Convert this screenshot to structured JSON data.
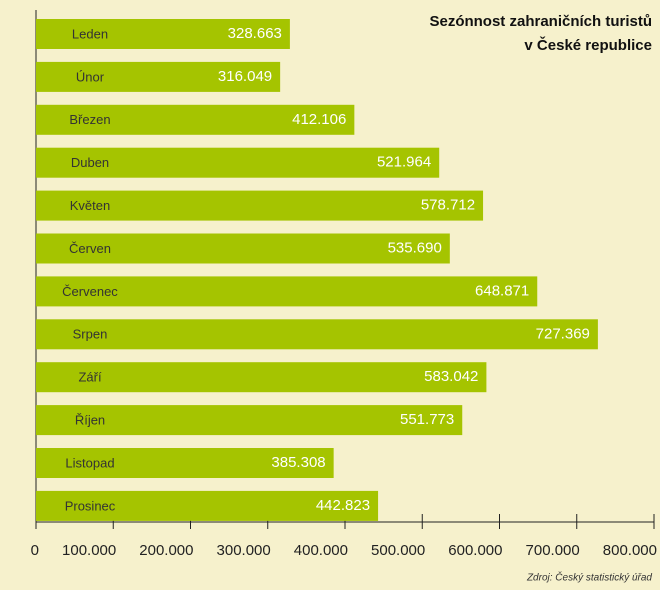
{
  "chart_data": {
    "type": "barh",
    "title_lines": [
      "Sezónnost zahraničních turistů",
      "v České republice"
    ],
    "source": "Zdroj: Český statistický úřad",
    "categories": [
      "Leden",
      "Únor",
      "Březen",
      "Duben",
      "Květen",
      "Červen",
      "Červenec",
      "Srpen",
      "Září",
      "Říjen",
      "Listopad",
      "Prosinec"
    ],
    "values": [
      328663,
      316049,
      412106,
      521964,
      578712,
      535690,
      648871,
      727369,
      583042,
      551773,
      385308,
      442823
    ],
    "value_labels": [
      "328.663",
      "316.049",
      "412.106",
      "521.964",
      "578.712",
      "535.690",
      "648.871",
      "727.369",
      "583.042",
      "551.773",
      "385.308",
      "442.823"
    ],
    "color": "#a5c400",
    "xlim": [
      0,
      800000
    ],
    "xticks": [
      0,
      {
        "value": 100000,
        "label": "100.000"
      },
      {
        "value": 200000,
        "label": "200.000"
      },
      {
        "value": 300000,
        "label": "300.000"
      },
      {
        "value": 400000,
        "label": "400.000"
      },
      {
        "value": 500000,
        "label": "500.000"
      },
      {
        "value": 600000,
        "label": "600.000"
      },
      {
        "value": 700000,
        "label": "700.000"
      },
      {
        "value": 800000,
        "label": "800.000"
      }
    ],
    "grid": false
  }
}
